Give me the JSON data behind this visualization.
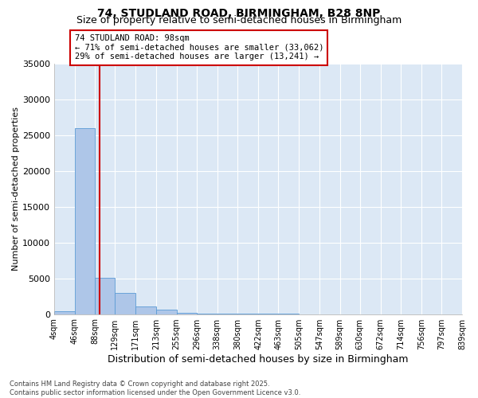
{
  "title1": "74, STUDLAND ROAD, BIRMINGHAM, B28 8NP",
  "title2": "Size of property relative to semi-detached houses in Birmingham",
  "xlabel": "Distribution of semi-detached houses by size in Birmingham",
  "ylabel": "Number of semi-detached properties",
  "bin_edges": [
    4,
    46,
    88,
    129,
    171,
    213,
    255,
    296,
    338,
    380,
    422,
    463,
    505,
    547,
    589,
    630,
    672,
    714,
    756,
    797,
    839
  ],
  "bar_heights": [
    400,
    26000,
    5100,
    3000,
    1100,
    600,
    200,
    80,
    40,
    20,
    15,
    10,
    8,
    5,
    4,
    3,
    2,
    2,
    1,
    1
  ],
  "ylim": [
    0,
    35000
  ],
  "property_size": 98,
  "bar_color": "#aec6e8",
  "bar_edge_color": "#5b9bd5",
  "vline_color": "#cc0000",
  "annotation_text": "74 STUDLAND ROAD: 98sqm\n← 71% of semi-detached houses are smaller (33,062)\n29% of semi-detached houses are larger (13,241) →",
  "annotation_box_color": "#ffffff",
  "annotation_box_edge": "#cc0000",
  "bg_color": "#dce8f5",
  "footer_text": "Contains HM Land Registry data © Crown copyright and database right 2025.\nContains public sector information licensed under the Open Government Licence v3.0.",
  "title1_fontsize": 10,
  "title2_fontsize": 9,
  "ytick_labels": [
    "0",
    "5000",
    "10000",
    "15000",
    "20000",
    "25000",
    "30000",
    "35000"
  ],
  "ytick_values": [
    0,
    5000,
    10000,
    15000,
    20000,
    25000,
    30000,
    35000
  ],
  "grid_color": "#ffffff"
}
